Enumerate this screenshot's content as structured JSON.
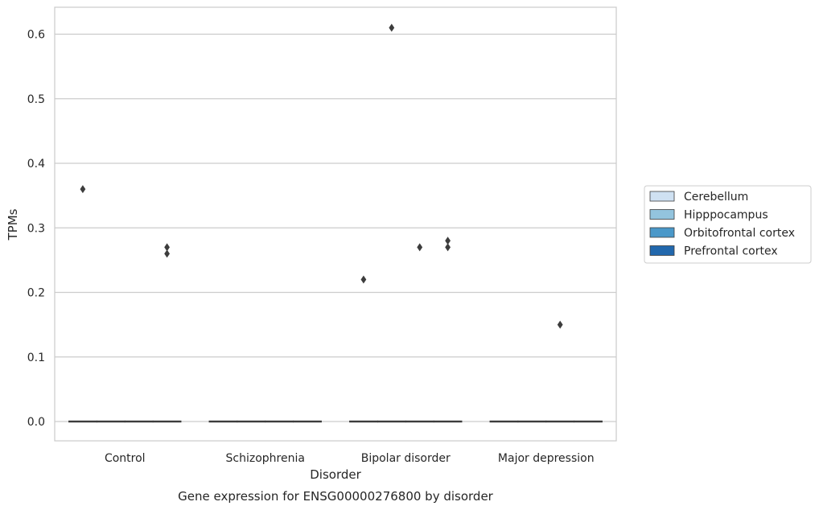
{
  "chart_data": {
    "type": "box",
    "title": "Gene expression for ENSG00000276800 by disorder",
    "xlabel": "Disorder",
    "ylabel": "TPMs",
    "categories": [
      "Control",
      "Schizophrenia",
      "Bipolar disorder",
      "Major depression"
    ],
    "y_ticks": [
      "0.0",
      "0.1",
      "0.2",
      "0.3",
      "0.4",
      "0.5",
      "0.6"
    ],
    "ylim": [
      -0.03,
      0.642
    ],
    "grid": true,
    "legend_position": "right",
    "series": [
      {
        "name": "Cerebellum",
        "color": "#cfe1f2",
        "median": [
          0,
          0,
          0,
          0
        ],
        "outliers": [
          [
            0.36
          ],
          [],
          [
            0.22
          ],
          []
        ]
      },
      {
        "name": "Hipppocampus",
        "color": "#93c4de",
        "median": [
          0,
          0,
          0,
          0
        ],
        "outliers": [
          [],
          [],
          [
            0.61
          ],
          []
        ]
      },
      {
        "name": "Orbitofrontal cortex",
        "color": "#4a98c9",
        "median": [
          0,
          0,
          0,
          0
        ],
        "outliers": [
          [],
          [],
          [
            0.27
          ],
          [
            0.15
          ]
        ]
      },
      {
        "name": "Prefrontal cortex",
        "color": "#2268ad",
        "median": [
          0,
          0,
          0,
          0
        ],
        "outliers": [
          [
            0.27,
            0.26
          ],
          [],
          [
            0.28,
            0.27
          ],
          []
        ]
      }
    ]
  }
}
